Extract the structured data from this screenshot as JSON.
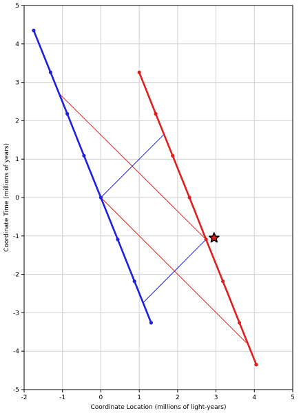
{
  "chart_data": {
    "type": "line",
    "title": "",
    "xlabel": "Coordinate Location (millions of light-years)",
    "ylabel": "Coordinate Time (millions of years)",
    "xlim": [
      -2,
      5
    ],
    "ylim": [
      -5,
      5
    ],
    "xticks": [
      -2,
      -1,
      0,
      1,
      2,
      3,
      4,
      5
    ],
    "yticks": [
      -5,
      -4,
      -3,
      -2,
      -1,
      0,
      1,
      2,
      3,
      4,
      5
    ],
    "grid": true,
    "series": [
      {
        "role": "worldline",
        "color": "#1f1fe0",
        "points": [
          [
            -1.75,
            4.35
          ],
          [
            -1.31,
            3.26
          ],
          [
            -0.875,
            2.18
          ],
          [
            -0.44,
            1.09
          ],
          [
            0,
            0
          ],
          [
            0.44,
            -1.09
          ],
          [
            0.875,
            -2.18
          ],
          [
            1.31,
            -3.26
          ]
        ]
      },
      {
        "role": "worldline",
        "color": "#e01f1f",
        "points": [
          [
            1.0,
            3.26
          ],
          [
            1.43,
            2.18
          ],
          [
            1.87,
            1.09
          ],
          [
            2.31,
            0
          ],
          [
            2.74,
            -1.09
          ],
          [
            3.18,
            -2.18
          ],
          [
            3.61,
            -3.26
          ],
          [
            4.05,
            -4.35
          ]
        ]
      }
    ],
    "light_rays": [
      {
        "color": "#e01f1f",
        "points": [
          [
            -1.1,
            2.72
          ],
          [
            2.74,
            -1.09
          ]
        ]
      },
      {
        "color": "#e01f1f",
        "points": [
          [
            0,
            0
          ],
          [
            3.79,
            -3.78
          ]
        ]
      },
      {
        "color": "#1f1fe0",
        "points": [
          [
            0,
            0
          ],
          [
            1.65,
            1.65
          ]
        ]
      },
      {
        "color": "#1f1fe0",
        "points": [
          [
            1.1,
            -2.74
          ],
          [
            2.74,
            -1.09
          ]
        ]
      }
    ],
    "event_marker": {
      "x": 2.95,
      "y": -1.05,
      "color": "#e01f1f",
      "shape": "star"
    }
  }
}
